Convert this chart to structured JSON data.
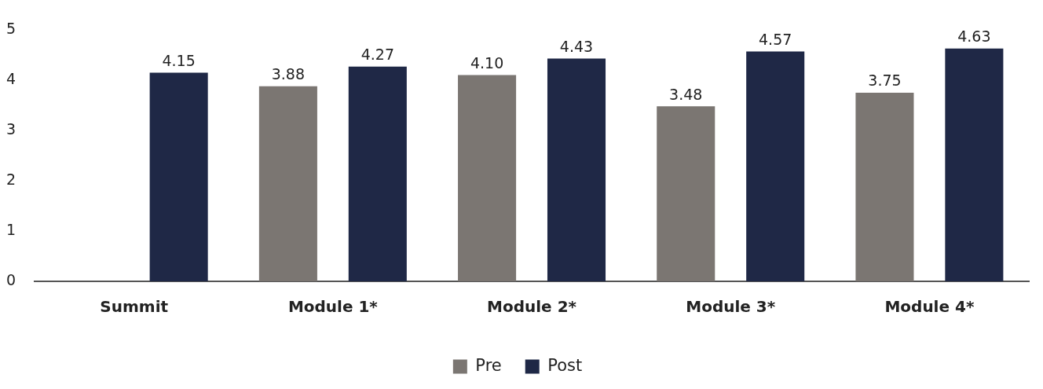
{
  "chart_data": {
    "type": "bar",
    "categories": [
      "Summit",
      "Module 1*",
      "Module 2*",
      "Module 3*",
      "Module 4*"
    ],
    "series": [
      {
        "name": "Pre",
        "color": "#7b7672",
        "values": [
          null,
          3.88,
          4.1,
          3.48,
          3.75
        ],
        "value_labels": [
          null,
          "3.88",
          "4.10",
          "3.48",
          "3.75"
        ]
      },
      {
        "name": "Post",
        "color": "#1f2846",
        "values": [
          4.15,
          4.27,
          4.43,
          4.57,
          4.63
        ],
        "value_labels": [
          "4.15",
          "4.27",
          "4.43",
          "4.57",
          "4.63"
        ]
      }
    ],
    "ylim": [
      0,
      5
    ],
    "yticks": [
      0,
      1,
      2,
      3,
      4,
      5
    ],
    "grid": false,
    "legend": "bottom"
  }
}
